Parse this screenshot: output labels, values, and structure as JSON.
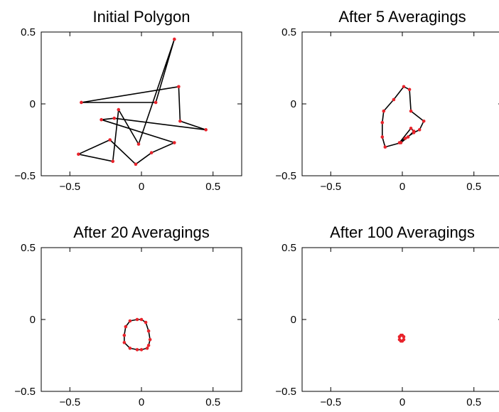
{
  "chart_data": [
    {
      "type": "line",
      "title": "Initial Polygon",
      "xlim": [
        -0.7,
        0.7
      ],
      "ylim": [
        -0.5,
        0.5
      ],
      "xticks": [
        -0.5,
        0,
        0.5
      ],
      "xtick_labels": [
        "−0.5",
        "0",
        "0.5"
      ],
      "yticks": [
        -0.5,
        0,
        0.5
      ],
      "ytick_labels": [
        "−0.5",
        "0",
        "0.5"
      ],
      "closed": true,
      "line_color": "#000000",
      "marker_color": "#e8232b",
      "x": [
        0.23,
        0.1,
        -0.42,
        0.26,
        0.27,
        0.45,
        -0.19,
        -0.28,
        0.23,
        0.07,
        -0.04,
        -0.22,
        -0.44,
        -0.2,
        -0.16,
        -0.02
      ],
      "y": [
        0.45,
        0.01,
        0.01,
        0.12,
        -0.12,
        -0.18,
        -0.1,
        -0.11,
        -0.27,
        -0.34,
        -0.42,
        -0.25,
        -0.35,
        -0.4,
        -0.04,
        -0.28
      ]
    },
    {
      "type": "line",
      "title": "After 5 Averagings",
      "xlim": [
        -0.7,
        0.7
      ],
      "ylim": [
        -0.5,
        0.5
      ],
      "xticks": [
        -0.5,
        0,
        0.5
      ],
      "xtick_labels": [
        "−0.5",
        "0",
        "0.5"
      ],
      "yticks": [
        -0.5,
        0,
        0.5
      ],
      "ytick_labels": [
        "−0.5",
        "0",
        "0.5"
      ],
      "closed": true,
      "line_color": "#000000",
      "marker_color": "#e8232b",
      "x": [
        0.01,
        0.05,
        0.06,
        0.15,
        0.12,
        0.08,
        0.02,
        -0.02,
        0.06,
        0.08,
        0.04,
        -0.01,
        -0.12,
        -0.14,
        -0.14,
        -0.13,
        -0.06
      ],
      "y": [
        0.12,
        0.1,
        -0.05,
        -0.12,
        -0.18,
        -0.2,
        -0.24,
        -0.27,
        -0.17,
        -0.19,
        -0.23,
        -0.27,
        -0.3,
        -0.23,
        -0.13,
        -0.05,
        0.03
      ]
    },
    {
      "type": "line",
      "title": "After 20 Averagings",
      "xlim": [
        -0.7,
        0.7
      ],
      "ylim": [
        -0.5,
        0.5
      ],
      "xticks": [
        -0.5,
        0,
        0.5
      ],
      "xtick_labels": [
        "−0.5",
        "0",
        "0.5"
      ],
      "yticks": [
        -0.5,
        0,
        0.5
      ],
      "ytick_labels": [
        "−0.5",
        "0",
        "0.5"
      ],
      "closed": true,
      "line_color": "#000000",
      "marker_color": "#e8232b",
      "x": [
        -0.03,
        0.0,
        0.03,
        0.05,
        0.06,
        0.05,
        0.04,
        0.0,
        -0.03,
        -0.08,
        -0.12,
        -0.12,
        -0.11,
        -0.08
      ],
      "y": [
        0.0,
        0.0,
        -0.02,
        -0.08,
        -0.14,
        -0.18,
        -0.2,
        -0.21,
        -0.21,
        -0.2,
        -0.16,
        -0.11,
        -0.05,
        -0.01
      ]
    },
    {
      "type": "line",
      "title": "After 100 Averagings",
      "xlim": [
        -0.7,
        0.7
      ],
      "ylim": [
        -0.5,
        0.5
      ],
      "xticks": [
        -0.5,
        0,
        0.5
      ],
      "xtick_labels": [
        "−0.5",
        "0",
        "0.5"
      ],
      "yticks": [
        -0.5,
        0,
        0.5
      ],
      "ytick_labels": [
        "−0.5",
        "0",
        "0.5"
      ],
      "closed": true,
      "line_color": "#000000",
      "marker_color": "#e8232b",
      "x": [
        -0.01,
        0.0,
        0.01,
        0.01,
        0.0,
        -0.01,
        -0.02,
        -0.02
      ],
      "y": [
        -0.11,
        -0.11,
        -0.12,
        -0.14,
        -0.15,
        -0.15,
        -0.14,
        -0.12
      ]
    }
  ]
}
